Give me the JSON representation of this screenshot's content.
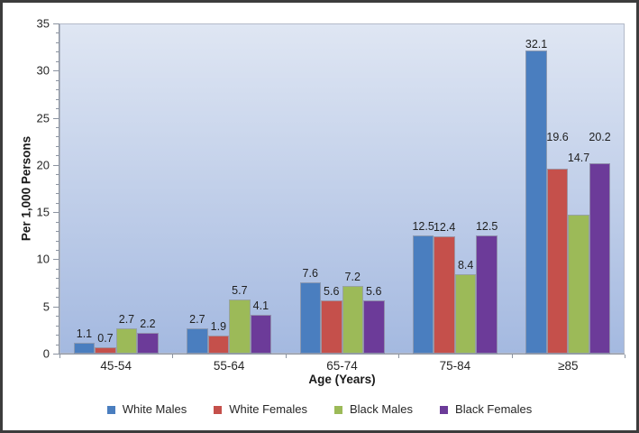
{
  "chart_data": {
    "type": "bar",
    "title": "",
    "categories": [
      "45-54",
      "55-64",
      "65-74",
      "75-84",
      "≥85"
    ],
    "series": [
      {
        "name": "White Males",
        "color": "#4a7ebf",
        "values": [
          1.1,
          2.7,
          7.6,
          12.5,
          32.1
        ]
      },
      {
        "name": "White Females",
        "color": "#c5504b",
        "values": [
          0.7,
          1.9,
          5.6,
          12.4,
          19.6
        ]
      },
      {
        "name": "Black Males",
        "color": "#9cba58",
        "values": [
          2.7,
          5.7,
          7.2,
          8.4,
          14.7
        ]
      },
      {
        "name": "Black Females",
        "color": "#6c3b99",
        "values": [
          2.2,
          4.1,
          5.6,
          12.5,
          20.2
        ]
      }
    ],
    "xlabel": "Age (Years)",
    "ylabel": "Per 1,000 Persons",
    "ylim": [
      0,
      35
    ],
    "yticks": [
      0,
      5,
      10,
      15,
      20,
      25,
      30,
      35
    ],
    "minor_tick_step": 1,
    "grid": false,
    "value_labels": true,
    "legend_position": "bottom",
    "plot_bg_top": "#dfe6f3",
    "plot_bg_bottom": "#a4b9e0",
    "layout_hints": {
      "label_dy": [
        [
          0,
          0,
          0,
          0,
          3
        ],
        [
          0,
          0,
          0,
          0,
          -25
        ],
        [
          0,
          0,
          0,
          0,
          -53
        ],
        [
          0,
          0,
          0,
          0,
          -19
        ]
      ]
    }
  }
}
